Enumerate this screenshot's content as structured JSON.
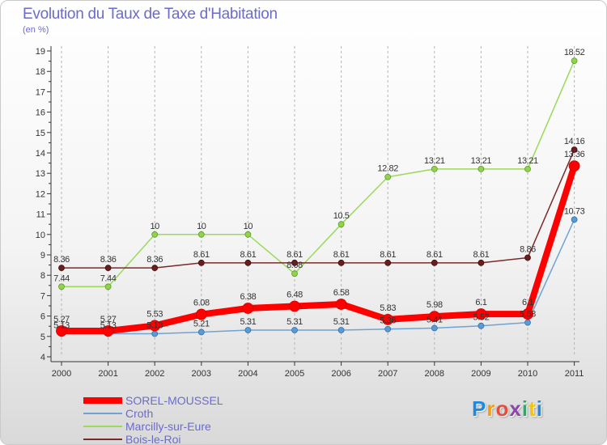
{
  "header": {
    "title": "Evolution du Taux de Taxe d'Habitation",
    "unit": "(en %)"
  },
  "logo": {
    "text": "Proxiti",
    "colors": [
      "#1e88e5",
      "#f39c12",
      "#e74c3c",
      "#8e44ad",
      "#27ae60",
      "#f1c40f",
      "#1e88e5"
    ]
  },
  "chart_data": {
    "type": "line",
    "title": "Evolution du Taux de Taxe d'Habitation",
    "ylabel": "(en %)",
    "xlabel": "",
    "categories": [
      "2000",
      "2001",
      "2002",
      "2003",
      "2004",
      "2005",
      "2006",
      "2007",
      "2008",
      "2009",
      "2010",
      "2011"
    ],
    "ylim": [
      4,
      19
    ],
    "yticks": [
      4,
      5,
      6,
      7,
      8,
      9,
      10,
      11,
      12,
      13,
      14,
      15,
      16,
      17,
      18,
      19
    ],
    "grid": "vertical dashed",
    "legend_position": "bottom-left",
    "series": [
      {
        "name": "SOREL-MOUSSEL",
        "color": "#ff0000",
        "values": [
          5.27,
          5.27,
          5.53,
          6.08,
          6.38,
          6.48,
          6.58,
          5.83,
          5.98,
          6.1,
          6.1,
          13.36
        ],
        "labels": [
          "5.27",
          "5.27",
          "5.53",
          "6.08",
          "6.38",
          "6.48",
          "6.58",
          "5.83",
          "5.98",
          "6.1",
          "6.1",
          "13.36"
        ]
      },
      {
        "name": "Croth",
        "color": "#5b9bd5",
        "values": [
          5.13,
          5.13,
          5.13,
          5.21,
          5.31,
          5.31,
          5.31,
          5.36,
          5.41,
          5.52,
          5.68,
          10.73
        ],
        "labels": [
          "5.13",
          "5.13",
          "5.13",
          "5.21",
          "5.31",
          "5.31",
          "5.31",
          "5.36",
          "5.41",
          "5.52",
          "5.68",
          "10.73"
        ]
      },
      {
        "name": "Marcilly-sur-Eure",
        "color": "#8fd44c",
        "values": [
          7.44,
          7.44,
          10,
          10,
          10,
          8.08,
          10.5,
          12.82,
          13.21,
          13.21,
          13.21,
          18.52
        ],
        "labels": [
          "7.44",
          "7.44",
          "10",
          "10",
          "10",
          "8.08",
          "10.5",
          "12.82",
          "13.21",
          "13.21",
          "13.21",
          "18.52"
        ]
      },
      {
        "name": "Bois-le-Roi",
        "color": "#7b2a2a",
        "values": [
          8.36,
          8.36,
          8.36,
          8.61,
          8.61,
          8.61,
          8.61,
          8.61,
          8.61,
          8.61,
          8.86,
          14.16
        ],
        "labels": [
          "8.36",
          "8.36",
          "8.36",
          "8.61",
          "8.61",
          "8.61",
          "8.61",
          "8.61",
          "8.61",
          "8.61",
          "8.86",
          "14.16"
        ]
      }
    ]
  }
}
